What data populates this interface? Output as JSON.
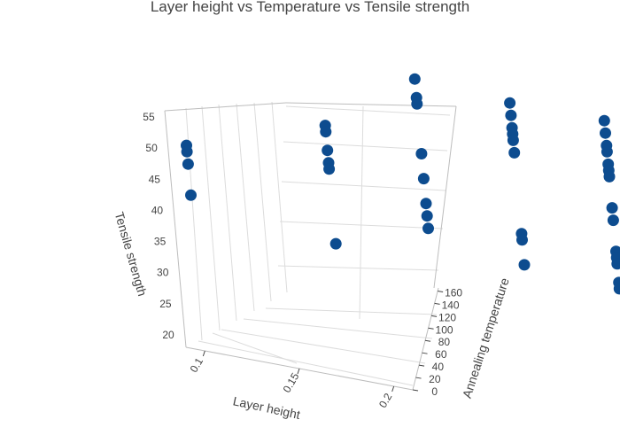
{
  "chart_data": {
    "type": "scatter3d",
    "title": "Layer height vs Temperature vs Tensile strength",
    "axes": {
      "x": {
        "label": "Layer height",
        "ticks": [
          "0.1",
          "0.15",
          "0.2"
        ],
        "range": [
          0.09,
          0.21
        ]
      },
      "y": {
        "label": "Annealing temperature",
        "ticks": [
          "0",
          "20",
          "40",
          "60",
          "80",
          "100",
          "120",
          "140",
          "160"
        ],
        "range": [
          0,
          165
        ]
      },
      "z": {
        "label": "Tensile strength",
        "ticks": [
          "20",
          "25",
          "30",
          "35",
          "40",
          "45",
          "50",
          "55"
        ],
        "range": [
          18,
          56
        ]
      }
    },
    "grid": true,
    "marker_color": "#0d4c8f",
    "points": [
      {
        "x": 0.1,
        "y": 0,
        "z": 51
      },
      {
        "x": 0.1,
        "y": 0,
        "z": 50
      },
      {
        "x": 0.1,
        "y": 0,
        "z": 48
      },
      {
        "x": 0.1,
        "y": 0,
        "z": 43
      },
      {
        "x": 0.1,
        "y": 150,
        "z": 53
      },
      {
        "x": 0.1,
        "y": 150,
        "z": 50
      },
      {
        "x": 0.1,
        "y": 150,
        "z": 49
      },
      {
        "x": 0.1,
        "y": 150,
        "z": 41
      },
      {
        "x": 0.1,
        "y": 150,
        "z": 37
      },
      {
        "x": 0.1,
        "y": 150,
        "z": 33
      },
      {
        "x": 0.1,
        "y": 150,
        "z": 31
      },
      {
        "x": 0.1,
        "y": 150,
        "z": 29
      },
      {
        "x": 0.1,
        "y": 90,
        "z": 49
      },
      {
        "x": 0.1,
        "y": 90,
        "z": 48
      },
      {
        "x": 0.1,
        "y": 90,
        "z": 45
      },
      {
        "x": 0.1,
        "y": 90,
        "z": 43
      },
      {
        "x": 0.1,
        "y": 90,
        "z": 42
      },
      {
        "x": 0.1,
        "y": 90,
        "z": 30
      },
      {
        "x": 0.15,
        "y": 150,
        "z": 52
      },
      {
        "x": 0.15,
        "y": 150,
        "z": 50
      },
      {
        "x": 0.15,
        "y": 150,
        "z": 48
      },
      {
        "x": 0.15,
        "y": 150,
        "z": 47
      },
      {
        "x": 0.15,
        "y": 150,
        "z": 46
      },
      {
        "x": 0.15,
        "y": 150,
        "z": 44
      },
      {
        "x": 0.15,
        "y": 150,
        "z": 31
      },
      {
        "x": 0.15,
        "y": 150,
        "z": 30
      },
      {
        "x": 0.15,
        "y": 150,
        "z": 26
      },
      {
        "x": 0.2,
        "y": 150,
        "z": 52
      },
      {
        "x": 0.2,
        "y": 150,
        "z": 50
      },
      {
        "x": 0.2,
        "y": 150,
        "z": 48
      },
      {
        "x": 0.2,
        "y": 150,
        "z": 47
      },
      {
        "x": 0.2,
        "y": 150,
        "z": 45
      },
      {
        "x": 0.2,
        "y": 150,
        "z": 44
      },
      {
        "x": 0.2,
        "y": 150,
        "z": 43
      },
      {
        "x": 0.2,
        "y": 150,
        "z": 38
      },
      {
        "x": 0.2,
        "y": 150,
        "z": 36
      },
      {
        "x": 0.2,
        "y": 150,
        "z": 31
      },
      {
        "x": 0.2,
        "y": 150,
        "z": 30
      },
      {
        "x": 0.2,
        "y": 150,
        "z": 29
      },
      {
        "x": 0.2,
        "y": 150,
        "z": 26
      },
      {
        "x": 0.2,
        "y": 150,
        "z": 25
      }
    ]
  }
}
